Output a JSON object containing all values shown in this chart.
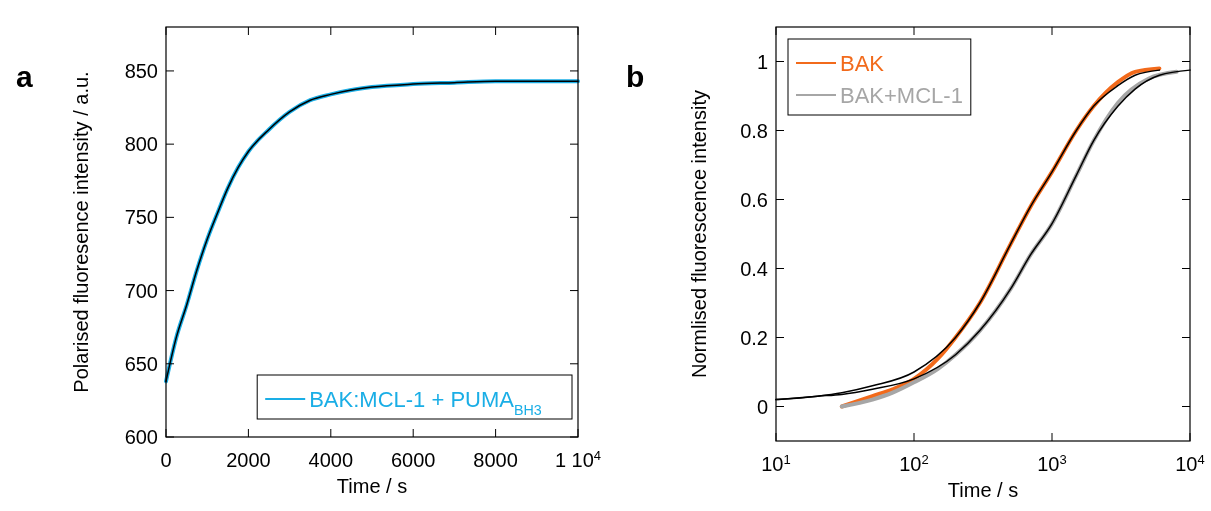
{
  "chart_data": [
    {
      "type": "line",
      "annotations": [
        "a"
      ],
      "xlabel": "Time / s",
      "ylabel": "Polarised fluoresence intensity / a.u.",
      "xlim": [
        0,
        10000
      ],
      "xticks": [
        0,
        2000,
        4000,
        6000,
        8000,
        {
          "value": 10000,
          "label": "1 10$^{4}$"
        }
      ],
      "ylim": [
        600,
        880
      ],
      "yticks": [
        600,
        650,
        700,
        750,
        800,
        850
      ],
      "legend": "bottom right",
      "series": [
        {
          "name": "BAK:MCL-1 + PUMA$_{BH3}$",
          "color": "#1aaee6",
          "x": [
            0,
            250,
            500,
            750,
            1000,
            1250,
            1500,
            1750,
            2000,
            2500,
            3000,
            3500,
            4000,
            4500,
            5000,
            6000,
            7000,
            8000,
            9000,
            10000
          ],
          "values": [
            638,
            668,
            690,
            714,
            735,
            753,
            770,
            784,
            795,
            810,
            822,
            830,
            834,
            837,
            839,
            841,
            842,
            843,
            843,
            843
          ]
        },
        {
          "color": "#000000",
          "x": [
            0,
            250,
            500,
            750,
            1000,
            1250,
            1500,
            1750,
            2000,
            2500,
            3000,
            3500,
            4000,
            4500,
            5000,
            6000,
            7000,
            8000,
            9000,
            10000
          ],
          "values": [
            638,
            668,
            690,
            714,
            735,
            753,
            770,
            784,
            795,
            810,
            822,
            830,
            834,
            837,
            839,
            841,
            842,
            843,
            843,
            843
          ]
        }
      ]
    },
    {
      "type": "line",
      "annotations": [
        "b"
      ],
      "xlabel": "Time / s",
      "ylabel": "Normlised fluorescence intensity",
      "log": "x",
      "xlim": [
        10,
        10000
      ],
      "xticks": [
        {
          "value": 10,
          "label": "10$^{1}$"
        },
        {
          "value": 100,
          "label": "10$^{2}$"
        },
        {
          "value": 1000,
          "label": "10$^{3}$"
        },
        {
          "value": 10000,
          "label": "10$^{4}$"
        }
      ],
      "ylim": [
        -0.1,
        1.1
      ],
      "yticks": [
        0,
        0.2,
        0.4,
        0.6,
        0.8,
        1
      ],
      "legend": "top left",
      "series": [
        {
          "name": "BAK",
          "color": "#f26a1b",
          "x": [
            30,
            50,
            70,
            100,
            150,
            200,
            300,
            500,
            700,
            1000,
            1500,
            2000,
            3000,
            4000,
            6000
          ],
          "values": [
            0,
            0.03,
            0.05,
            0.08,
            0.14,
            0.2,
            0.3,
            0.47,
            0.58,
            0.68,
            0.8,
            0.87,
            0.94,
            0.97,
            0.98
          ]
        },
        {
          "name": "BAK+MCL-1",
          "color": "#a6a6a6",
          "x": [
            30,
            50,
            70,
            100,
            150,
            200,
            300,
            500,
            700,
            1000,
            1500,
            2000,
            3000,
            5000,
            8000
          ],
          "values": [
            0,
            0.02,
            0.04,
            0.07,
            0.11,
            0.15,
            0.22,
            0.34,
            0.44,
            0.53,
            0.67,
            0.77,
            0.88,
            0.95,
            0.97
          ]
        },
        {
          "color": "#000000",
          "x": [
            10,
            20,
            30,
            50,
            100,
            200,
            300,
            500,
            700,
            1000,
            1500,
            2000,
            3000,
            4000,
            6000
          ],
          "values": [
            0.02,
            0.03,
            0.04,
            0.06,
            0.1,
            0.2,
            0.3,
            0.47,
            0.58,
            0.68,
            0.8,
            0.87,
            0.93,
            0.96,
            0.975
          ]
        },
        {
          "color": "#000000",
          "x": [
            10,
            20,
            30,
            50,
            100,
            200,
            300,
            500,
            700,
            1000,
            1500,
            2000,
            3000,
            4000,
            6000,
            10000
          ],
          "values": [
            0.02,
            0.03,
            0.035,
            0.05,
            0.08,
            0.15,
            0.22,
            0.34,
            0.44,
            0.53,
            0.67,
            0.77,
            0.87,
            0.92,
            0.96,
            0.975
          ]
        }
      ]
    }
  ]
}
